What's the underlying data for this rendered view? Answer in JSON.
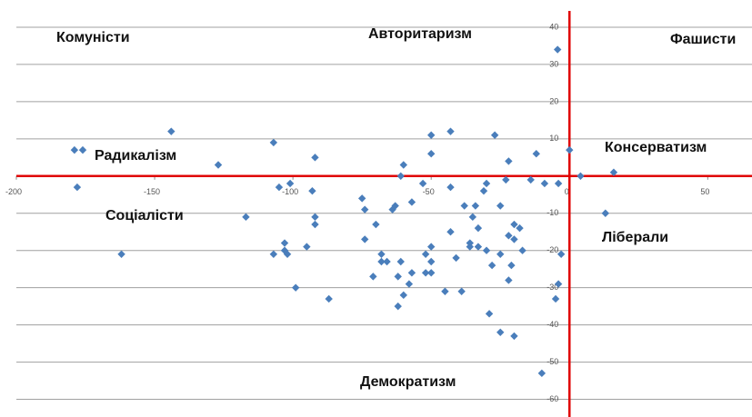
{
  "chart_data": {
    "type": "scatter",
    "color": "#4a7ebb",
    "xlim": [
      -200,
      66
    ],
    "ylim": [
      -65,
      45
    ],
    "xticks": [
      -200,
      -150,
      -100,
      -50,
      0,
      50
    ],
    "yticks": [
      -60,
      -50,
      -40,
      -30,
      -20,
      -10,
      10,
      20,
      30,
      40
    ],
    "grid": true,
    "annotations": [
      "Комуністи",
      "Авторитаризм",
      "Фашисти",
      "Радикалізм",
      "Консерватизм",
      "Соціалісти",
      "Ліберали",
      "Демократизм"
    ],
    "x": [
      -4.3,
      -179,
      -176,
      -178,
      -144,
      -127,
      -107,
      -92,
      -162,
      -117,
      -105,
      -101,
      -93,
      -92,
      -92,
      -95,
      -102,
      -107,
      -103,
      -103,
      -99,
      -87,
      -75,
      -74,
      -70,
      -74,
      -68,
      -68,
      -66,
      -71,
      -64,
      -63,
      -60,
      -61,
      -57,
      -61,
      -57,
      -62,
      -60,
      -58,
      -62,
      -53,
      -50,
      -50,
      -43,
      -43,
      -43,
      -41,
      -50,
      -52,
      -50,
      -52,
      -50,
      -45,
      -39,
      -38,
      -34,
      -35,
      -31,
      -30,
      -27,
      -33,
      -36,
      -36,
      -33,
      -30,
      -25,
      -25,
      -28,
      -29,
      -25,
      -22,
      -23,
      -22,
      -20,
      -18,
      -20,
      -21,
      -22,
      -17,
      -20,
      -12,
      -14,
      -9,
      -4,
      0,
      4,
      -4,
      -5,
      -10,
      -3,
      16,
      13
    ],
    "values": [
      34,
      7,
      7,
      -3,
      12,
      3,
      9,
      5,
      -21,
      -11,
      -3,
      -2,
      -4,
      -11,
      -13,
      -19,
      -21,
      -21,
      -18,
      -20,
      -30,
      -33,
      -6,
      -9,
      -13,
      -17,
      -21,
      -23,
      -23,
      -27,
      -9,
      -8,
      3,
      0,
      -7,
      -23,
      -26,
      -27,
      -32,
      -29,
      -35,
      -2,
      6,
      11,
      12,
      -3,
      -15,
      -22,
      -19,
      -21,
      -23,
      -26,
      -26,
      -31,
      -31,
      -8,
      -8,
      -11,
      -4,
      -2,
      11,
      -14,
      -18,
      -19,
      -19,
      -20,
      -8,
      -21,
      -24,
      -37,
      -42,
      4,
      -1,
      -16,
      -13,
      -14,
      -17,
      -24,
      -28,
      -20,
      -43,
      6,
      -1,
      -2,
      -2,
      7,
      0,
      -29,
      -33,
      -53,
      -21,
      1,
      -10
    ]
  }
}
